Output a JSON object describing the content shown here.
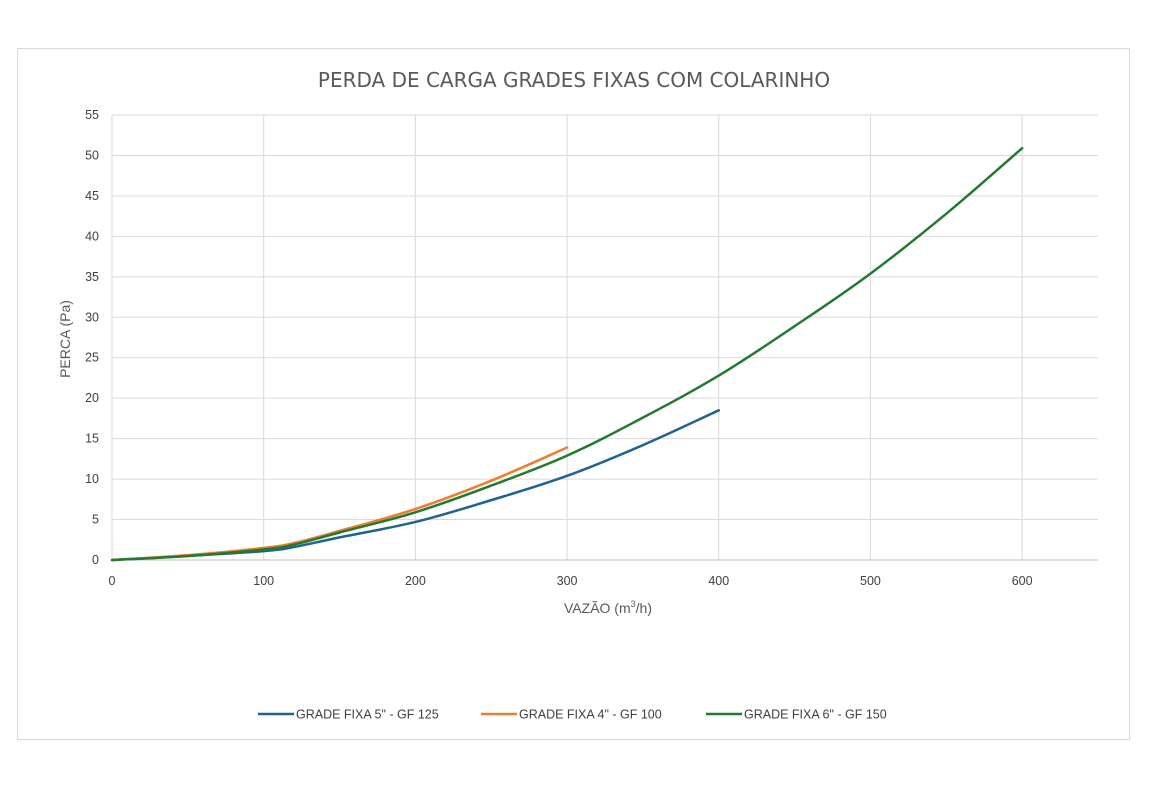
{
  "chart_data": {
    "type": "line",
    "title": "PERDA DE CARGA GRADES FIXAS COM COLARINHO",
    "xlabel_prefix": "VAZÃO (m",
    "xlabel_sup": "3",
    "xlabel_suffix": "/h)",
    "ylabel": "PERCA (Pa)",
    "xlim": [
      0,
      650
    ],
    "ylim": [
      0,
      55
    ],
    "xticks": [
      0,
      100,
      200,
      300,
      400,
      500,
      600
    ],
    "yticks": [
      0,
      5,
      10,
      15,
      20,
      25,
      30,
      35,
      40,
      45,
      50,
      55
    ],
    "grid": true,
    "legend_position": "bottom",
    "series": [
      {
        "name": "GRADE FIXA 5\" - GF 125",
        "color": "#1f6391",
        "x": [
          0,
          50,
          100,
          120,
          150,
          200,
          250,
          300,
          350,
          400
        ],
        "y": [
          0,
          0.5,
          1.1,
          1.6,
          2.8,
          4.7,
          7.4,
          10.4,
          14.2,
          18.5
        ]
      },
      {
        "name": "GRADE FIXA 4\" - GF 100",
        "color": "#ed7d31",
        "x": [
          0,
          50,
          100,
          120,
          150,
          200,
          250,
          300
        ],
        "y": [
          0,
          0.6,
          1.5,
          2.1,
          3.6,
          6.3,
          9.8,
          13.9
        ]
      },
      {
        "name": "GRADE FIXA 6\" - GF 150",
        "color": "#217a2d",
        "x": [
          0,
          50,
          100,
          120,
          150,
          200,
          250,
          300,
          350,
          400,
          450,
          500,
          550,
          600
        ],
        "y": [
          0,
          0.5,
          1.3,
          1.9,
          3.4,
          5.9,
          9.2,
          12.9,
          17.6,
          22.8,
          28.9,
          35.4,
          42.8,
          50.9
        ]
      }
    ]
  }
}
